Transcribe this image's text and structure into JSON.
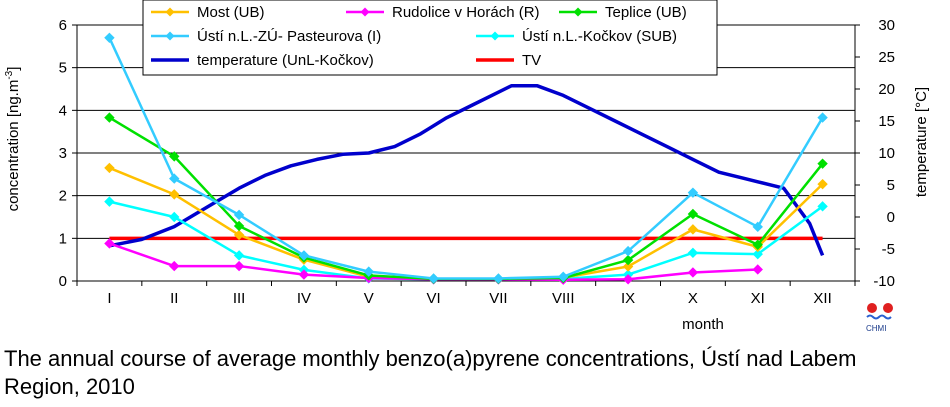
{
  "caption": "The annual course of average monthly benzo(a)pyrene concentrations, Ústí nad Labem Region, 2010",
  "logo_text": "CHMI",
  "chart_data": {
    "type": "line",
    "title": "",
    "xlabel": "month",
    "ylabel": "concentration [ng.m-3]",
    "ylabel_parts": {
      "base": "concentration [ng.m",
      "sup": "-3",
      "end": "]"
    },
    "y2label": "temperature [°C]",
    "categories": [
      "I",
      "II",
      "III",
      "IV",
      "V",
      "VI",
      "VII",
      "VIII",
      "IX",
      "X",
      "XI",
      "XII"
    ],
    "ylim": [
      0,
      6
    ],
    "y_ticks": [
      "0",
      "1",
      "2",
      "3",
      "4",
      "5",
      "6"
    ],
    "y2lim": [
      -10,
      30
    ],
    "y2_ticks": [
      "-10",
      "-5",
      "0",
      "5",
      "10",
      "15",
      "20",
      "25",
      "30"
    ],
    "grid": true,
    "legend_placement": "top",
    "series": [
      {
        "name": "Most (UB)",
        "color": "#FFC000",
        "marker": "diamond",
        "axis": "left",
        "values": [
          2.65,
          2.03,
          1.08,
          0.5,
          0.1,
          0.05,
          0.05,
          0.08,
          0.34,
          1.21,
          0.8,
          2.27
        ]
      },
      {
        "name": "Rudolice v Horách (R)",
        "color": "#FF00FF",
        "marker": "diamond",
        "axis": "left",
        "values": [
          0.88,
          0.35,
          0.35,
          0.15,
          0.07,
          0.04,
          0.04,
          0.03,
          0.04,
          0.2,
          0.27,
          null
        ]
      },
      {
        "name": "Teplice  (UB)",
        "color": "#00E000",
        "marker": "diamond",
        "axis": "left",
        "values": [
          3.83,
          2.92,
          1.29,
          0.55,
          0.13,
          0.05,
          0.05,
          0.07,
          0.49,
          1.57,
          0.85,
          2.75
        ]
      },
      {
        "name": "Ústí n.L.-ZÚ- Pasteurova (I)",
        "color": "#33CCFF",
        "marker": "diamond",
        "axis": "left",
        "values": [
          5.7,
          2.4,
          1.55,
          0.6,
          0.22,
          0.06,
          0.06,
          0.1,
          0.7,
          2.07,
          1.27,
          3.83
        ]
      },
      {
        "name": "Ústí n.L.-Kočkov (SUB)",
        "color": "#00FFFF",
        "marker": "diamond",
        "axis": "left",
        "values": [
          1.86,
          1.5,
          0.6,
          0.26,
          0.06,
          0.04,
          0.04,
          0.05,
          0.15,
          0.66,
          0.63,
          1.75
        ]
      },
      {
        "name": "temperature (UnL-Kočkov)",
        "color": "#0000CC",
        "marker": "none",
        "axis": "right",
        "x": [
          1,
          1.5,
          2,
          2.5,
          3,
          3.4,
          3.8,
          4.2,
          4.6,
          5,
          5.4,
          5.8,
          6.2,
          6.6,
          7,
          7.2,
          7.6,
          8,
          8.4,
          8.8,
          9.2,
          9.6,
          10,
          10.4,
          10.8,
          11,
          11.4,
          11.8,
          12
        ],
        "values": [
          -4.5,
          -3.5,
          -1.5,
          1.5,
          4.5,
          6.5,
          8,
          9,
          9.8,
          10,
          11,
          13,
          15.5,
          17.5,
          19.5,
          20.5,
          20.5,
          19,
          17,
          15,
          13,
          11,
          9,
          7,
          6,
          5.5,
          4.5,
          -1,
          -6
        ]
      },
      {
        "name": "TV",
        "color": "#FF0000",
        "marker": "none",
        "axis": "left",
        "values": [
          1,
          1,
          1,
          1,
          1,
          1,
          1,
          1,
          1,
          1,
          1,
          1
        ]
      }
    ]
  }
}
